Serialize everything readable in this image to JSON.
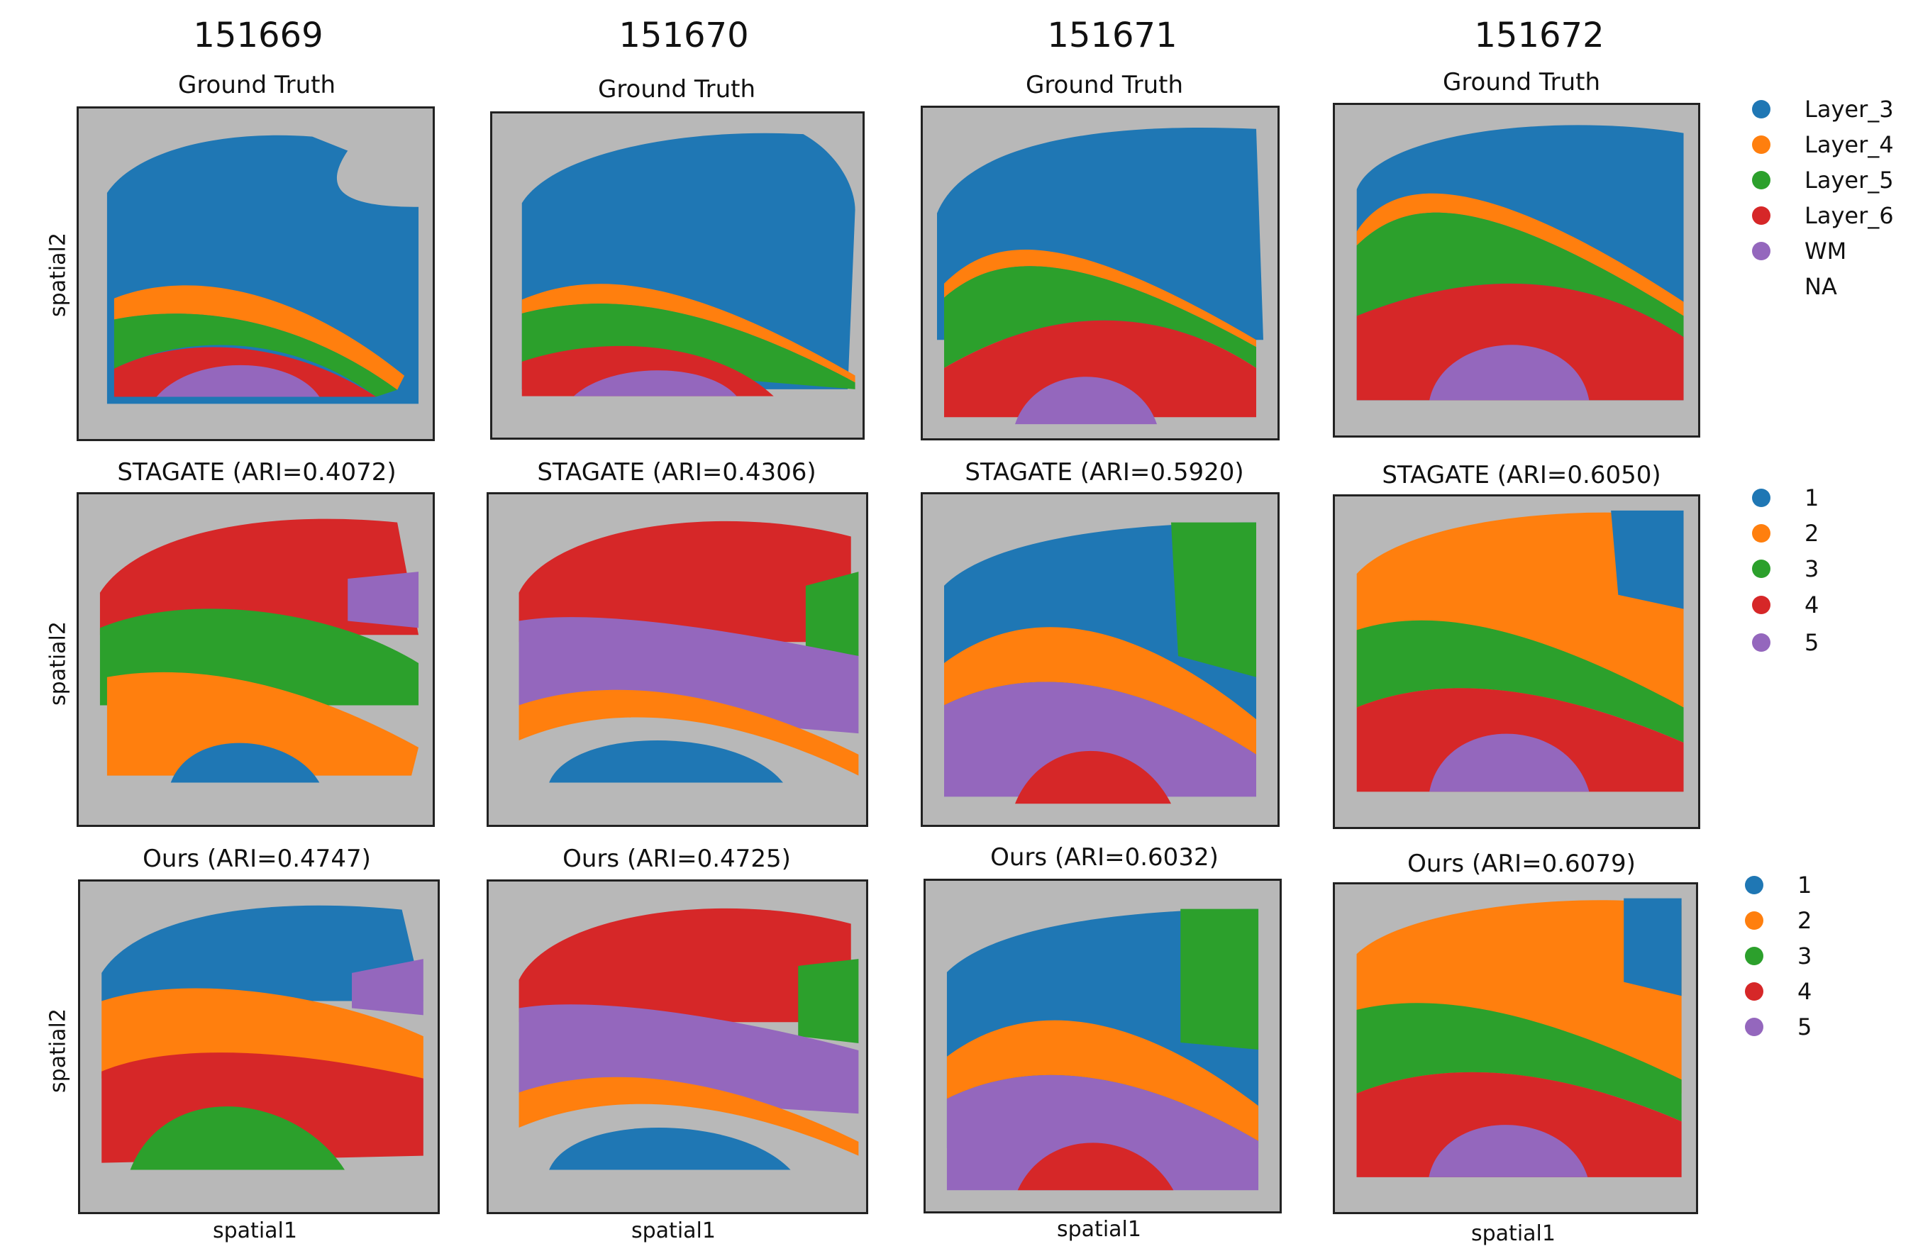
{
  "figure": {
    "column_titles": [
      "151669",
      "151670",
      "151671",
      "151672"
    ],
    "row_titles": {
      "gt": [
        "Ground Truth",
        "Ground Truth",
        "Ground Truth",
        "Ground Truth"
      ],
      "stagate": [
        "STAGATE (ARI=0.4072)",
        "STAGATE (ARI=0.4306)",
        "STAGATE (ARI=0.5920)",
        "STAGATE (ARI=0.6050)"
      ],
      "ours": [
        "Ours (ARI=0.4747)",
        "Ours (ARI=0.4725)",
        "Ours (ARI=0.6032)",
        "Ours (ARI=0.6079)"
      ]
    },
    "y_label": "spatial2",
    "x_label": "spatial1"
  },
  "legend_gt": [
    {
      "label": "Layer_3",
      "color": "#1f77b4"
    },
    {
      "label": "Layer_4",
      "color": "#ff7f0e"
    },
    {
      "label": "Layer_5",
      "color": "#2ca02c"
    },
    {
      "label": "Layer_6",
      "color": "#d62728"
    },
    {
      "label": "WM",
      "color": "#9467bd"
    },
    {
      "label": "NA",
      "color": ""
    }
  ],
  "legend_stagate": [
    {
      "label": "1",
      "color": "#1f77b4"
    },
    {
      "label": "2",
      "color": "#ff7f0e"
    },
    {
      "label": "3",
      "color": "#2ca02c"
    },
    {
      "label": "4",
      "color": "#d62728"
    },
    {
      "label": "5",
      "color": "#9467bd"
    }
  ],
  "legend_ours": [
    {
      "label": "1",
      "color": "#1f77b4"
    },
    {
      "label": "2",
      "color": "#ff7f0e"
    },
    {
      "label": "3",
      "color": "#2ca02c"
    },
    {
      "label": "4",
      "color": "#d62728"
    },
    {
      "label": "5",
      "color": "#9467bd"
    }
  ],
  "colors": {
    "background_tissue": "#b8b8b8",
    "blue": "#1f77b4",
    "orange": "#ff7f0e",
    "green": "#2ca02c",
    "red": "#d62728",
    "purple": "#9467bd"
  }
}
